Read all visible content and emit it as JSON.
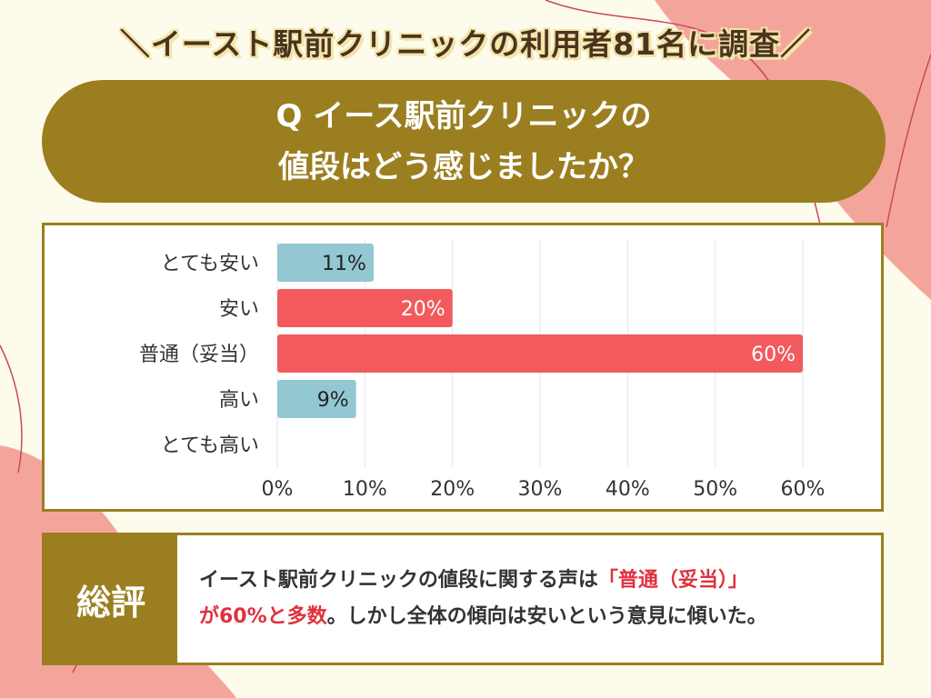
{
  "headline": "＼イースト駅前クリニックの利用者81名に調査／",
  "question": {
    "line1": "Q イース駅前クリニックの",
    "line2": "値段はどう感じましたか？"
  },
  "colors": {
    "background": "#fdfbeb",
    "olive": "#9b7e1f",
    "pink": "#f4a59b",
    "teal": "#93c8d3",
    "red": "#f25a5e",
    "highlight": "#e0313d"
  },
  "chart_data": {
    "type": "bar",
    "orientation": "horizontal",
    "categories": [
      "とても安い",
      "安い",
      "普通（妥当）",
      "高い",
      "とても高い"
    ],
    "values": [
      11,
      20,
      60,
      9,
      0
    ],
    "data_labels": [
      "11%",
      "20%",
      "60%",
      "9%",
      ""
    ],
    "bar_colors": [
      "#93c8d3",
      "#f25a5e",
      "#f25a5e",
      "#93c8d3",
      "#93c8d3"
    ],
    "xlim": [
      0,
      60
    ],
    "xticks": [
      "0%",
      "10%",
      "20%",
      "30%",
      "40%",
      "50%",
      "60%"
    ],
    "grid": true
  },
  "summary": {
    "label": "総評",
    "text_part1": "イースト駅前クリニックの値段に関する声は",
    "highlight1": "「普通（妥当）」",
    "highlight2": "が60%と多数",
    "text_part2": "。しかし全体の傾向は安いという意見に傾いた。"
  }
}
